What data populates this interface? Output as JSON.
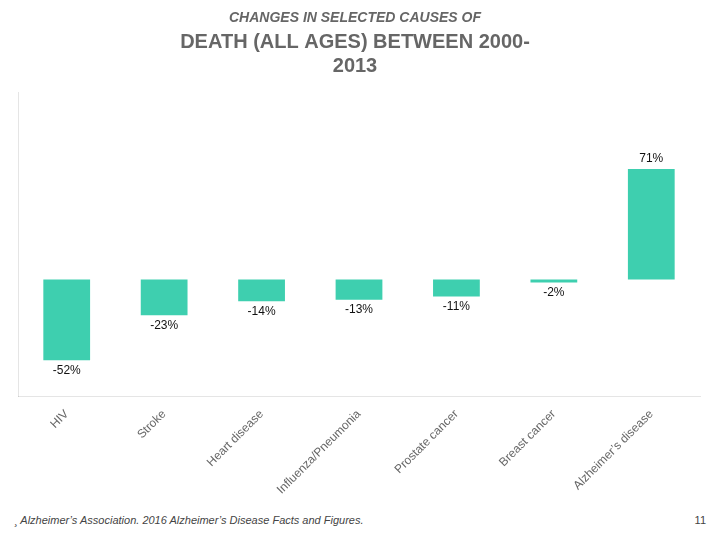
{
  "chart_data": {
    "type": "bar",
    "title": "CHANGES IN SELECTED CAUSES OF",
    "subtitle": "DEATH (ALL AGES) BETWEEN 2000-\n2013",
    "categories": [
      "HIV",
      "Stroke",
      "Heart disease",
      "Influenza/Pneumonia",
      "Prostate cancer",
      "Breast cancer",
      "Alzheimer’s disease"
    ],
    "values": [
      -52,
      -23,
      -14,
      -13,
      -11,
      -2,
      71
    ],
    "value_labels": [
      "-52%",
      "-23%",
      "-14%",
      "-13%",
      "-11%",
      "-2%",
      "71%"
    ],
    "color": "#3ECFAF",
    "ylim": [
      -75,
      120
    ],
    "grid": false,
    "data_labels": true,
    "tick_labels": "x",
    "annotations": [
      "¸ Alzheimer’s Association.  2016 Alzheimer’s Disease Facts and Figures.",
      "11"
    ]
  }
}
